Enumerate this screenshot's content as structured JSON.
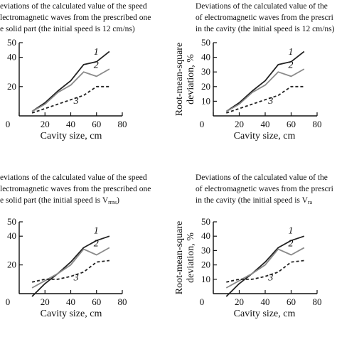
{
  "chart_data": [
    {
      "type": "line",
      "title": [
        "eviations of the calculated value of the speed",
        "lectromagnetic waves from the prescribed one",
        "e solid part (the initial speed is 12 cm/ns)"
      ],
      "xlabel": "Cavity size, cm",
      "ylabel": [
        "",
        ""
      ],
      "xlim": [
        0,
        80
      ],
      "ylim": [
        0,
        50
      ],
      "xticks": [
        "0",
        "20",
        "40",
        "60",
        "80"
      ],
      "yticks": [
        "0",
        "20",
        "40",
        "50"
      ],
      "series": [
        {
          "name": "1",
          "x": [
            10,
            20,
            30,
            40,
            50,
            60,
            70
          ],
          "y": [
            3,
            9,
            17,
            24,
            35,
            37,
            44
          ],
          "color": "#222222",
          "dash": ""
        },
        {
          "name": "2",
          "x": [
            10,
            20,
            30,
            40,
            50,
            60,
            70
          ],
          "y": [
            3,
            8,
            16,
            21,
            30,
            27,
            32
          ],
          "color": "#8a8a8a",
          "dash": ""
        },
        {
          "name": "3",
          "x": [
            10,
            20,
            30,
            40,
            50,
            60,
            70
          ],
          "y": [
            2,
            5,
            8,
            11,
            14,
            20,
            20
          ],
          "color": "#222222",
          "dash": "4,3"
        }
      ]
    },
    {
      "type": "line",
      "title": [
        "Deviations of the calculated value of the",
        "of electromagnetic waves from the prescri",
        "in the cavity (the initial speed is 12 cm/ns)"
      ],
      "xlabel": "Cavity size, cm",
      "ylabel": [
        "Root-mean-square",
        "deviation, %"
      ],
      "xlim": [
        0,
        80
      ],
      "ylim": [
        0,
        50
      ],
      "xticks": [
        "0",
        "20",
        "40",
        "60",
        "80"
      ],
      "yticks": [
        "0",
        "10",
        "20",
        "30",
        "40",
        "50"
      ],
      "series": [
        {
          "name": "1",
          "x": [
            10,
            20,
            30,
            40,
            50,
            60,
            70
          ],
          "y": [
            3,
            9,
            17,
            24,
            35,
            37,
            44
          ],
          "color": "#222222",
          "dash": ""
        },
        {
          "name": "2",
          "x": [
            10,
            20,
            30,
            40,
            50,
            60,
            70
          ],
          "y": [
            3,
            8,
            16,
            21,
            30,
            27,
            32
          ],
          "color": "#8a8a8a",
          "dash": ""
        },
        {
          "name": "3",
          "x": [
            10,
            20,
            30,
            40,
            50,
            60,
            70
          ],
          "y": [
            2,
            5,
            8,
            11,
            14,
            20,
            20
          ],
          "color": "#222222",
          "dash": "4,3"
        }
      ]
    },
    {
      "type": "line",
      "title": [
        "eviations of the calculated value of the speed",
        "lectromagnetic waves from the prescribed one",
        "e solid part (the initial speed is V"
      ],
      "title_sub": "rms",
      "title_tail": ")",
      "xlabel": "Cavity size, cm",
      "ylabel": [
        "",
        ""
      ],
      "xlim": [
        0,
        80
      ],
      "ylim": [
        0,
        50
      ],
      "xticks": [
        "0",
        "20",
        "40",
        "60",
        "80"
      ],
      "yticks": [
        "0",
        "20",
        "40",
        "50"
      ],
      "series": [
        {
          "name": "1",
          "x": [
            10,
            20,
            30,
            40,
            50,
            60,
            70
          ],
          "y": [
            -2,
            7,
            14,
            22,
            32,
            37,
            40
          ],
          "color": "#222222",
          "dash": ""
        },
        {
          "name": "2",
          "x": [
            10,
            20,
            30,
            40,
            50,
            60,
            70
          ],
          "y": [
            4,
            9,
            14,
            20,
            31,
            27,
            32
          ],
          "color": "#8a8a8a",
          "dash": ""
        },
        {
          "name": "3",
          "x": [
            10,
            20,
            30,
            40,
            50,
            60,
            70
          ],
          "y": [
            8,
            10,
            10,
            12,
            15,
            22,
            23
          ],
          "color": "#222222",
          "dash": "4,3"
        }
      ]
    },
    {
      "type": "line",
      "title": [
        "Deviations of the calculated value of the",
        "of electromagnetic waves from the prescri",
        "in the cavity (the initial speed is V"
      ],
      "title_sub": "ra",
      "title_tail": "",
      "xlabel": "Cavity size, cm",
      "ylabel": [
        "Root-mean-square",
        "deviation, %"
      ],
      "xlim": [
        0,
        80
      ],
      "ylim": [
        0,
        50
      ],
      "xticks": [
        "0",
        "20",
        "40",
        "60",
        "80"
      ],
      "yticks": [
        "0",
        "10",
        "20",
        "30",
        "40",
        "50"
      ],
      "series": [
        {
          "name": "1",
          "x": [
            10,
            20,
            30,
            40,
            50,
            60,
            70
          ],
          "y": [
            -2,
            7,
            14,
            22,
            32,
            37,
            40
          ],
          "color": "#222222",
          "dash": ""
        },
        {
          "name": "2",
          "x": [
            10,
            20,
            30,
            40,
            50,
            60,
            70
          ],
          "y": [
            4,
            9,
            14,
            20,
            31,
            27,
            32
          ],
          "color": "#8a8a8a",
          "dash": ""
        },
        {
          "name": "3",
          "x": [
            10,
            20,
            30,
            40,
            50,
            60,
            70
          ],
          "y": [
            8,
            10,
            10,
            12,
            15,
            22,
            23
          ],
          "color": "#222222",
          "dash": "4,3"
        }
      ]
    }
  ]
}
